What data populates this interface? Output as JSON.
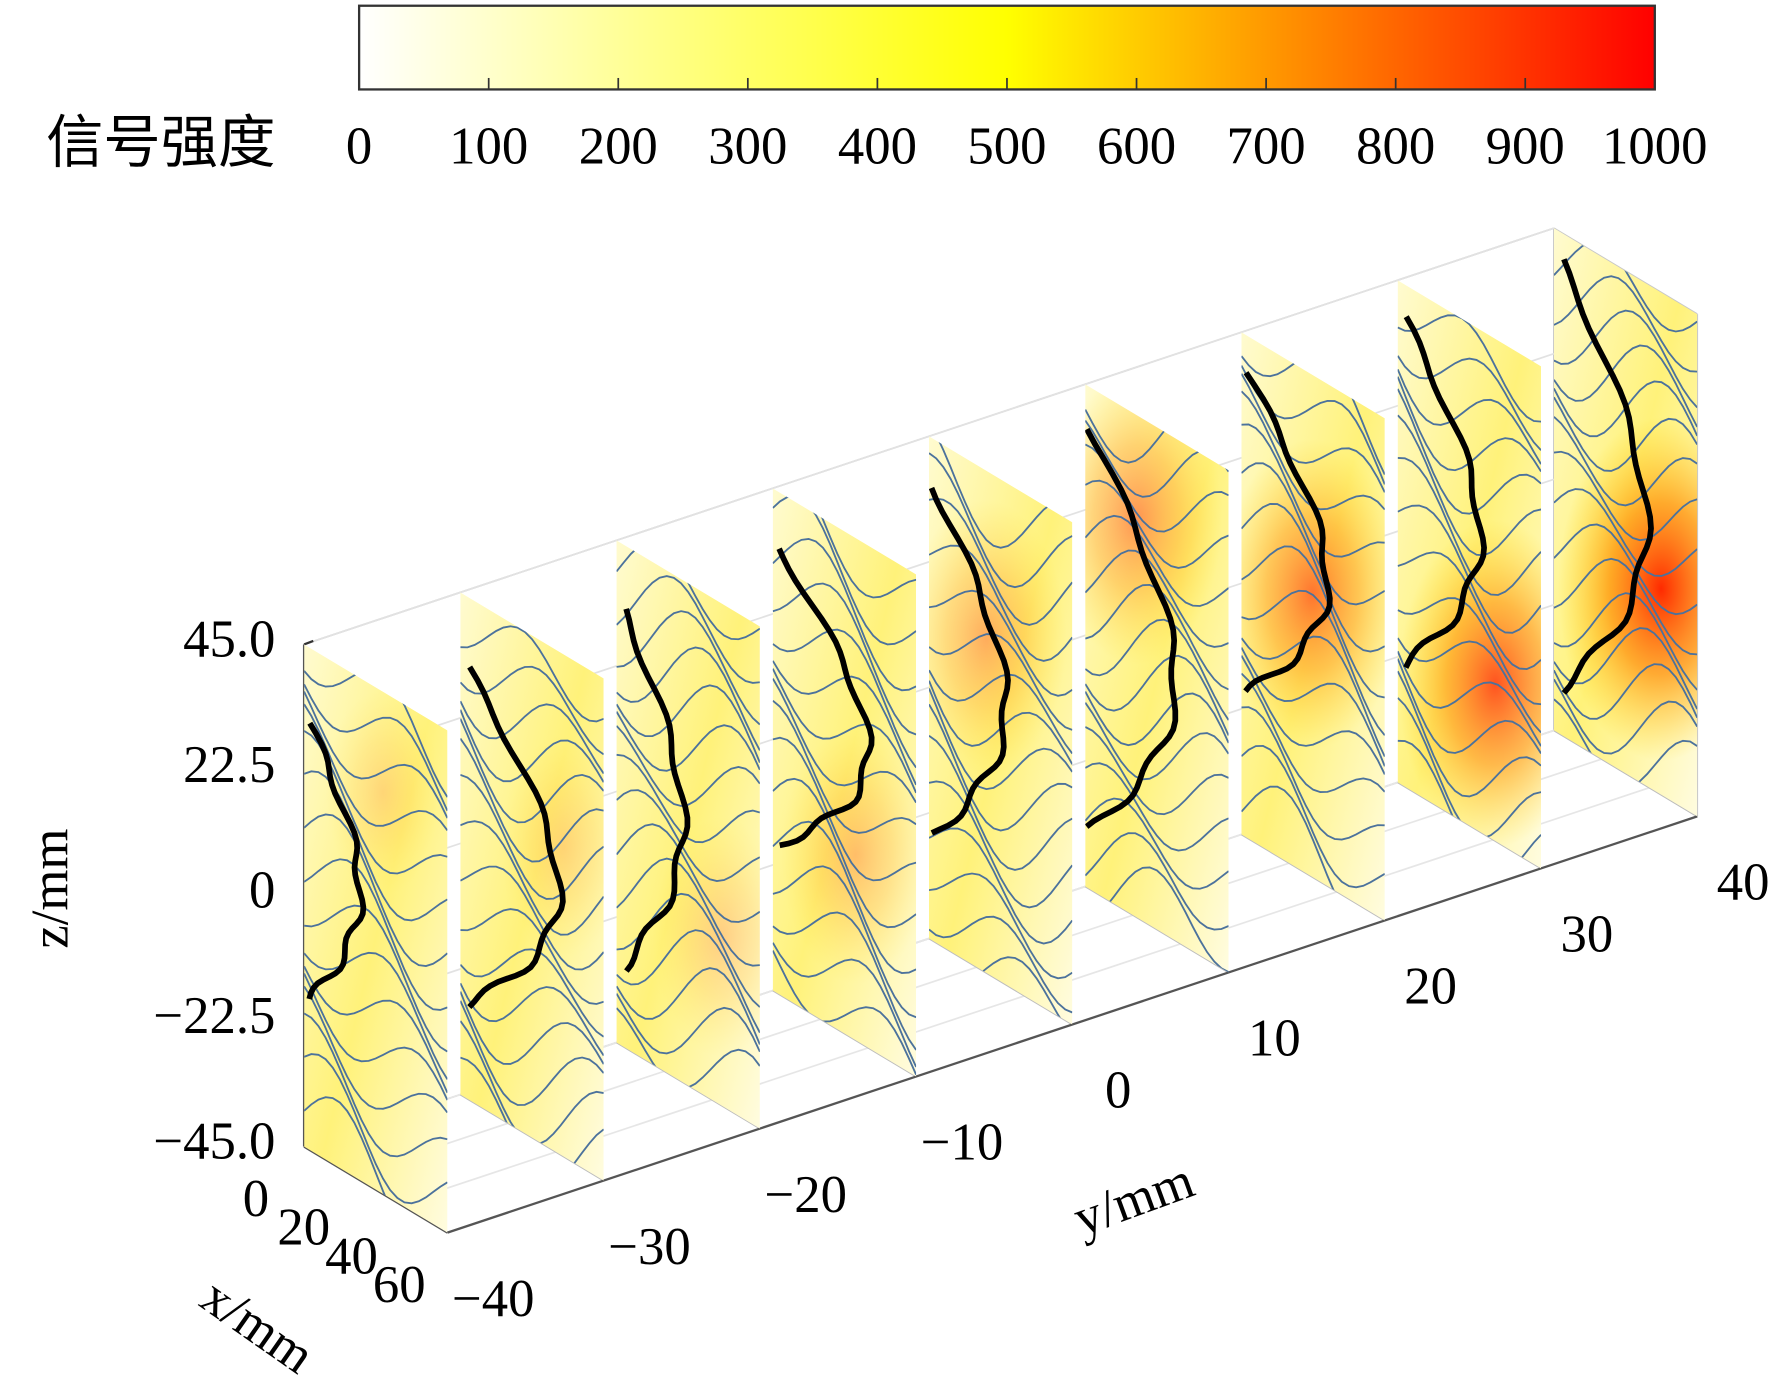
{
  "chart_data": {
    "type": "slices",
    "colorbar": {
      "label": "信号强度",
      "lim": [
        0,
        1000
      ],
      "ticks": [
        0,
        100,
        200,
        300,
        400,
        500,
        600,
        700,
        800,
        900,
        1000
      ],
      "colors": [
        "#ffffff",
        "#ffff00",
        "#ff0000"
      ]
    },
    "xlabel": "x/mm",
    "ylabel": "y/mm",
    "zlabel": "z/mm",
    "xlim": [
      0,
      60
    ],
    "xticks": [
      0,
      20,
      40,
      60
    ],
    "ylim": [
      -40,
      40
    ],
    "yticks": [
      {
        "value": -40,
        "label": "−40"
      },
      {
        "value": -30,
        "label": "−30"
      },
      {
        "value": -20,
        "label": "−20"
      },
      {
        "value": -10,
        "label": "−10"
      },
      0,
      10,
      20,
      30,
      40
    ],
    "zlim": [
      -45,
      45
    ],
    "zticks": [
      {
        "value": 45,
        "label": "45.0"
      },
      22.5,
      0,
      {
        "value": -22.5,
        "label": "−22.5"
      },
      {
        "value": -45,
        "label": "−45.0"
      }
    ],
    "grid": true
  }
}
